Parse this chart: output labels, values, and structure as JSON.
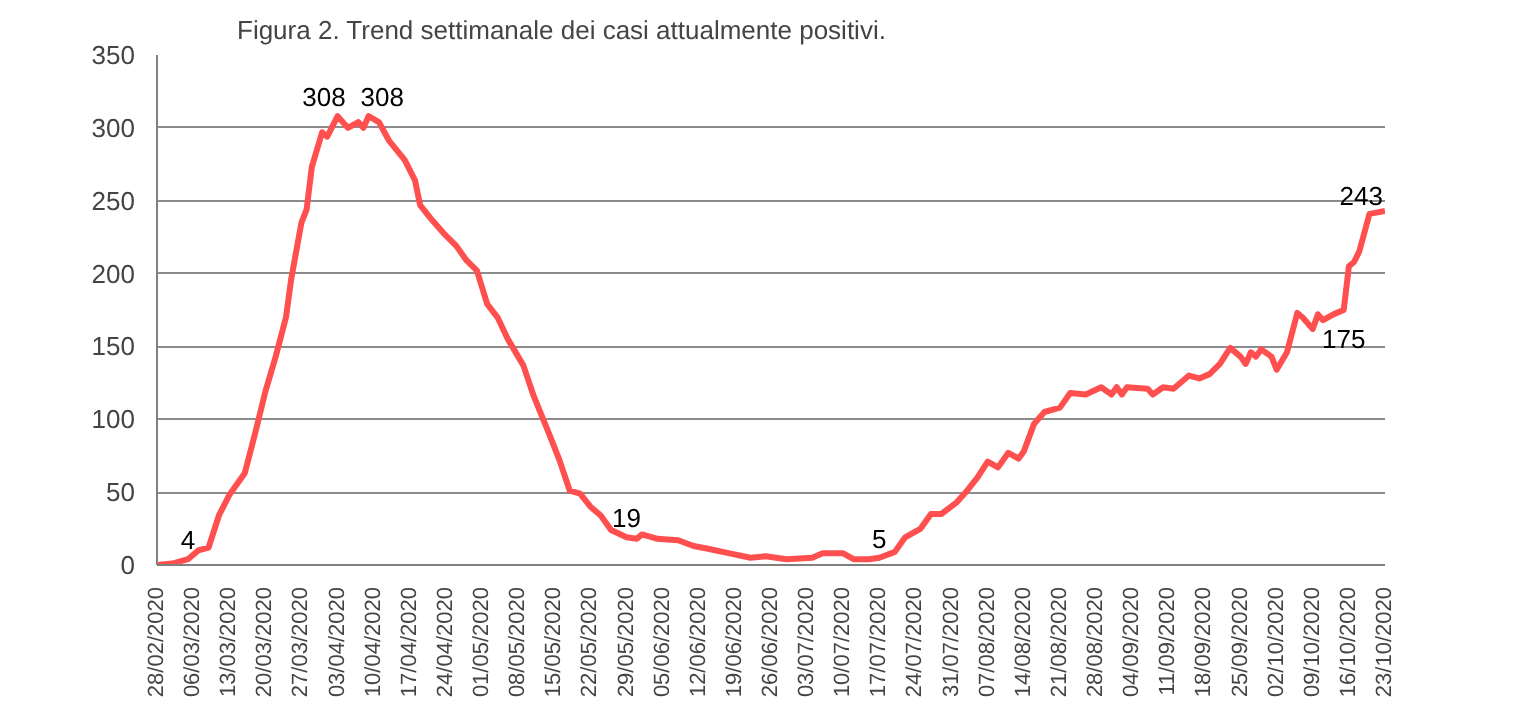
{
  "chart_data": {
    "type": "line",
    "title": "Figura 2. Trend settimanale dei casi attualmente positivi.",
    "x": [
      "2020-02-28",
      "2020-03-02",
      "2020-03-05",
      "2020-03-07",
      "2020-03-09",
      "2020-03-11",
      "2020-03-13",
      "2020-03-16",
      "2020-03-18",
      "2020-03-20",
      "2020-03-22",
      "2020-03-24",
      "2020-03-25",
      "2020-03-27",
      "2020-03-28",
      "2020-03-29",
      "2020-03-31",
      "2020-04-01",
      "2020-04-03",
      "2020-04-05",
      "2020-04-07",
      "2020-04-08",
      "2020-04-09",
      "2020-04-11",
      "2020-04-13",
      "2020-04-16",
      "2020-04-18",
      "2020-04-19",
      "2020-04-21",
      "2020-04-24",
      "2020-04-26",
      "2020-04-28",
      "2020-04-30",
      "2020-05-02",
      "2020-05-04",
      "2020-05-06",
      "2020-05-08",
      "2020-05-09",
      "2020-05-11",
      "2020-05-14",
      "2020-05-16",
      "2020-05-18",
      "2020-05-20",
      "2020-05-22",
      "2020-05-24",
      "2020-05-26",
      "2020-05-29",
      "2020-05-31",
      "2020-06-01",
      "2020-06-04",
      "2020-06-08",
      "2020-06-11",
      "2020-06-14",
      "2020-06-18",
      "2020-06-22",
      "2020-06-25",
      "2020-06-29",
      "2020-07-04",
      "2020-07-06",
      "2020-07-10",
      "2020-07-12",
      "2020-07-15",
      "2020-07-17",
      "2020-07-20",
      "2020-07-22",
      "2020-07-25",
      "2020-07-27",
      "2020-07-29",
      "2020-08-01",
      "2020-08-03",
      "2020-08-05",
      "2020-08-07",
      "2020-08-09",
      "2020-08-11",
      "2020-08-13",
      "2020-08-14",
      "2020-08-16",
      "2020-08-18",
      "2020-08-21",
      "2020-08-23",
      "2020-08-26",
      "2020-08-29",
      "2020-08-31",
      "2020-09-01",
      "2020-09-02",
      "2020-09-03",
      "2020-09-07",
      "2020-09-08",
      "2020-09-10",
      "2020-09-12",
      "2020-09-14",
      "2020-09-15",
      "2020-09-17",
      "2020-09-19",
      "2020-09-21",
      "2020-09-23",
      "2020-09-25",
      "2020-09-26",
      "2020-09-27",
      "2020-09-28",
      "2020-09-29",
      "2020-10-01",
      "2020-10-02",
      "2020-10-04",
      "2020-10-06",
      "2020-10-07",
      "2020-10-09",
      "2020-10-10",
      "2020-10-11",
      "2020-10-13",
      "2020-10-15",
      "2020-10-16",
      "2020-10-17",
      "2020-10-18",
      "2020-10-20",
      "2020-10-23"
    ],
    "series": [
      {
        "color": "#ff4f4f",
        "values": [
          0,
          1,
          4,
          10,
          12,
          34,
          48,
          63,
          90,
          119,
          143,
          170,
          196,
          235,
          244,
          273,
          297,
          294,
          308,
          300,
          304,
          300,
          308,
          304,
          291,
          278,
          264,
          247,
          238,
          226,
          219,
          209,
          202,
          179,
          170,
          155,
          143,
          137,
          116,
          90,
          72,
          51,
          49,
          40,
          34,
          24,
          19,
          18,
          21,
          18,
          17,
          13,
          11,
          8,
          5,
          6,
          4,
          5,
          8,
          8,
          4,
          4,
          5,
          9,
          19,
          25,
          35,
          35,
          43,
          51,
          60,
          71,
          67,
          77,
          73,
          78,
          97,
          105,
          108,
          118,
          117,
          122,
          117,
          122,
          117,
          122,
          121,
          117,
          122,
          121,
          127,
          130,
          128,
          131,
          138,
          149,
          143,
          138,
          146,
          143,
          148,
          143,
          134,
          146,
          173,
          170,
          162,
          172,
          168,
          172,
          175,
          205,
          208,
          215,
          241,
          243
        ],
        "value_labels": [
          null,
          null,
          "4",
          null,
          null,
          null,
          null,
          null,
          null,
          null,
          null,
          null,
          null,
          null,
          null,
          null,
          null,
          null,
          "308",
          null,
          null,
          null,
          "308",
          null,
          null,
          null,
          null,
          null,
          null,
          null,
          null,
          null,
          null,
          null,
          null,
          null,
          null,
          null,
          null,
          null,
          null,
          null,
          null,
          null,
          null,
          null,
          "19",
          null,
          null,
          null,
          null,
          null,
          null,
          null,
          null,
          null,
          null,
          null,
          null,
          null,
          null,
          null,
          "5",
          null,
          null,
          null,
          null,
          null,
          null,
          null,
          null,
          null,
          null,
          null,
          null,
          null,
          null,
          null,
          null,
          null,
          null,
          null,
          null,
          null,
          null,
          null,
          null,
          null,
          null,
          null,
          null,
          null,
          null,
          null,
          null,
          null,
          null,
          null,
          null,
          null,
          null,
          null,
          null,
          null,
          null,
          null,
          null,
          null,
          null,
          null,
          "175",
          null,
          null,
          null,
          null,
          "243"
        ]
      }
    ],
    "xlim": [
      "2020-02-28",
      "2020-10-23"
    ],
    "xticks": [
      {
        "value": "2020-02-28",
        "label": "28/02/2020"
      },
      {
        "value": "2020-03-06",
        "label": "06/03/2020"
      },
      {
        "value": "2020-03-13",
        "label": "13/03/2020"
      },
      {
        "value": "2020-03-20",
        "label": "20/03/2020"
      },
      {
        "value": "2020-03-27",
        "label": "27/03/2020"
      },
      {
        "value": "2020-04-03",
        "label": "03/04/2020"
      },
      {
        "value": "2020-04-10",
        "label": "10/04/2020"
      },
      {
        "value": "2020-04-17",
        "label": "17/04/2020"
      },
      {
        "value": "2020-04-24",
        "label": "24/04/2020"
      },
      {
        "value": "2020-05-01",
        "label": "01/05/2020"
      },
      {
        "value": "2020-05-08",
        "label": "08/05/2020"
      },
      {
        "value": "2020-05-15",
        "label": "15/05/2020"
      },
      {
        "value": "2020-05-22",
        "label": "22/05/2020"
      },
      {
        "value": "2020-05-29",
        "label": "29/05/2020"
      },
      {
        "value": "2020-06-05",
        "label": "05/06/2020"
      },
      {
        "value": "2020-06-12",
        "label": "12/06/2020"
      },
      {
        "value": "2020-06-19",
        "label": "19/06/2020"
      },
      {
        "value": "2020-06-26",
        "label": "26/06/2020"
      },
      {
        "value": "2020-07-03",
        "label": "03/07/2020"
      },
      {
        "value": "2020-07-10",
        "label": "10/07/2020"
      },
      {
        "value": "2020-07-17",
        "label": "17/07/2020"
      },
      {
        "value": "2020-07-24",
        "label": "24/07/2020"
      },
      {
        "value": "2020-07-31",
        "label": "31/07/2020"
      },
      {
        "value": "2020-08-07",
        "label": "07/08/2020"
      },
      {
        "value": "2020-08-14",
        "label": "14/08/2020"
      },
      {
        "value": "2020-08-21",
        "label": "21/08/2020"
      },
      {
        "value": "2020-08-28",
        "label": "28/08/2020"
      },
      {
        "value": "2020-09-04",
        "label": "04/09/2020"
      },
      {
        "value": "2020-09-11",
        "label": "11/09/2020"
      },
      {
        "value": "2020-09-18",
        "label": "18/09/2020"
      },
      {
        "value": "2020-09-25",
        "label": "25/09/2020"
      },
      {
        "value": "2020-10-02",
        "label": "02/10/2020"
      },
      {
        "value": "2020-10-09",
        "label": "09/10/2020"
      },
      {
        "value": "2020-10-16",
        "label": "16/10/2020"
      },
      {
        "value": "2020-10-23",
        "label": "23/10/2020"
      }
    ],
    "ylim": [
      0,
      350
    ],
    "yticks": [
      0,
      50,
      100,
      150,
      200,
      250,
      300,
      350
    ],
    "grid": "y",
    "marker": "none",
    "line_style": "solid"
  }
}
